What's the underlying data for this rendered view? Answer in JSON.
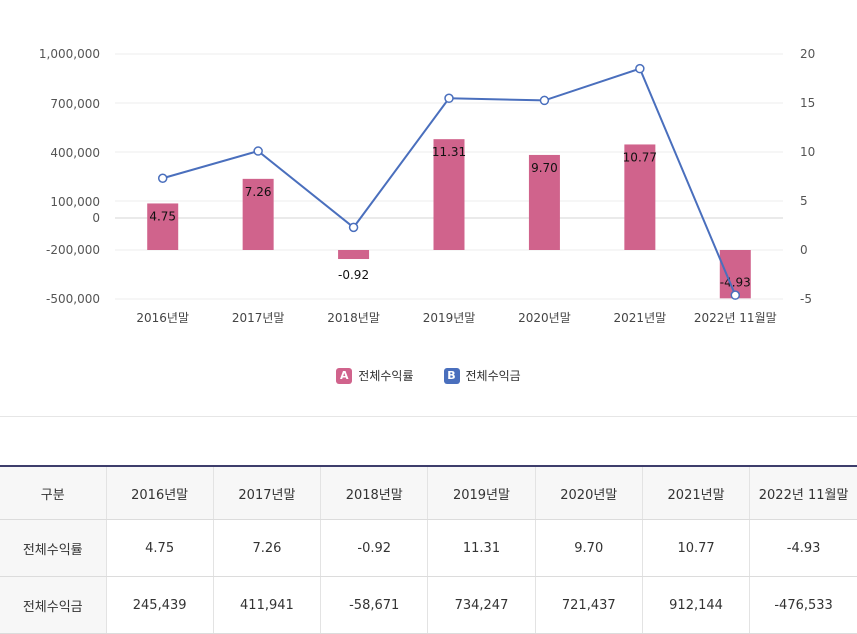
{
  "chart_data": {
    "type": "bar+line",
    "categories": [
      "2016년말",
      "2017년말",
      "2018년말",
      "2019년말",
      "2020년말",
      "2021년말",
      "2022년 11월말"
    ],
    "series": [
      {
        "name": "전체수익률",
        "type": "bar",
        "axis": "right",
        "color": "#d0638c",
        "values": [
          4.75,
          7.26,
          -0.92,
          11.31,
          9.7,
          10.77,
          -4.93
        ],
        "labels": [
          "4.75",
          "7.26",
          "-0.92",
          "11.31",
          "9.70",
          "10.77",
          "-4.93"
        ]
      },
      {
        "name": "전체수익금",
        "type": "line",
        "axis": "left",
        "color": "#4a6fbd",
        "values": [
          245439,
          411941,
          -58671,
          734247,
          721437,
          912144,
          -476533
        ]
      }
    ],
    "left_axis": {
      "ticks": [
        1000000,
        700000,
        400000,
        100000,
        0,
        -200000,
        -500000
      ],
      "tick_labels": [
        "1,000,000",
        "700,000",
        "400,000",
        "100,000",
        "0",
        "-200,000",
        "-500,000"
      ]
    },
    "right_axis": {
      "ticks": [
        20,
        15,
        10,
        5,
        0,
        -5
      ],
      "tick_labels": [
        "20",
        "15",
        "10",
        "5",
        "0",
        "-5"
      ],
      "ylim": [
        -5,
        20
      ]
    },
    "legend": [
      {
        "badge": "A",
        "label": "전체수익률",
        "color": "#d0638c"
      },
      {
        "badge": "B",
        "label": "전체수익금",
        "color": "#4a6fbd"
      }
    ]
  },
  "table": {
    "header": [
      "구분",
      "2016년말",
      "2017년말",
      "2018년말",
      "2019년말",
      "2020년말",
      "2021년말",
      "2022년 11월말"
    ],
    "rows": [
      [
        "전체수익률",
        "4.75",
        "7.26",
        "-0.92",
        "11.31",
        "9.70",
        "10.77",
        "-4.93"
      ],
      [
        "전체수익금",
        "245,439",
        "411,941",
        "-58,671",
        "734,247",
        "721,437",
        "912,144",
        "-476,533"
      ]
    ]
  }
}
